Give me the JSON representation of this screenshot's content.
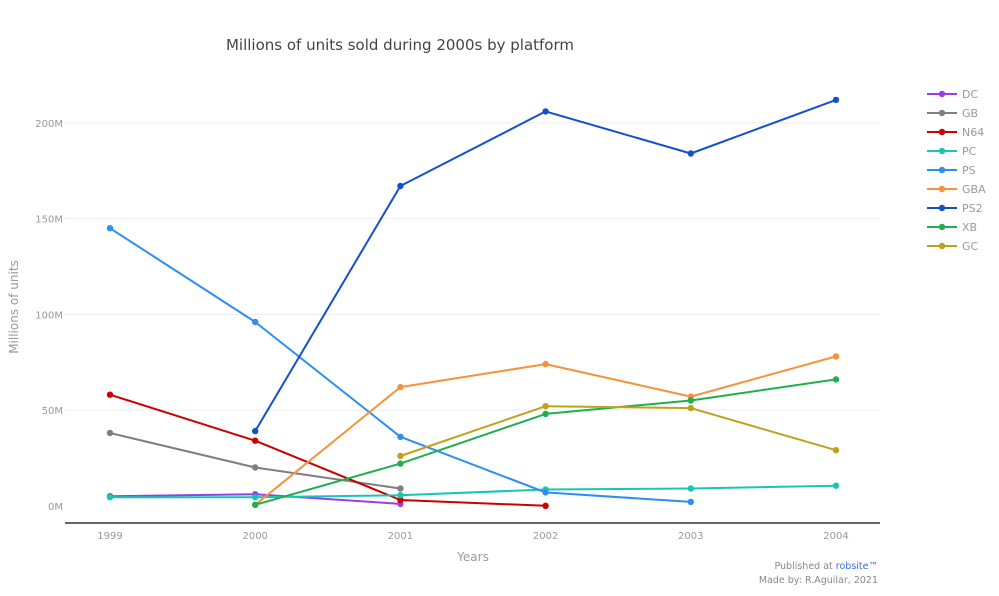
{
  "chart_data": {
    "type": "line",
    "title": "Millions of units sold during 2000s by platform",
    "xlabel": "Years",
    "ylabel": "Millions of units",
    "x": [
      "1999",
      "2000",
      "2001",
      "2002",
      "2003",
      "2004"
    ],
    "ylim": [
      -9,
      225
    ],
    "yticks": [
      0,
      50,
      100,
      150,
      200
    ],
    "ytick_labels": [
      "0M",
      "50M",
      "100M",
      "150M",
      "200M"
    ],
    "grid": true,
    "legend_position": "right",
    "series": [
      {
        "name": "DC",
        "color": "#9b3de6",
        "values": [
          5,
          6,
          1,
          null,
          null,
          null
        ]
      },
      {
        "name": "GB",
        "color": "#7f7f7f",
        "values": [
          38,
          20,
          9,
          null,
          null,
          null
        ]
      },
      {
        "name": "N64",
        "color": "#cc0000",
        "values": [
          58,
          34,
          3,
          0,
          null,
          null
        ]
      },
      {
        "name": "PC",
        "color": "#17c6b3",
        "values": [
          4.5,
          4.5,
          5.5,
          8.5,
          9,
          10.5
        ]
      },
      {
        "name": "PS",
        "color": "#2e8ff0",
        "values": [
          145,
          96,
          36,
          7,
          2,
          null
        ]
      },
      {
        "name": "GBA",
        "color": "#f5923a",
        "values": [
          null,
          0.5,
          62,
          74,
          57,
          78
        ]
      },
      {
        "name": "PS2",
        "color": "#1450c9",
        "values": [
          null,
          39,
          167,
          206,
          184,
          212
        ]
      },
      {
        "name": "XB",
        "color": "#1fb04c",
        "values": [
          null,
          0.5,
          22,
          48,
          55,
          66
        ]
      },
      {
        "name": "GC",
        "color": "#bfa21c",
        "values": [
          null,
          null,
          26,
          52,
          51,
          29
        ]
      }
    ]
  },
  "credits": {
    "published_prefix": "Published at ",
    "published_link": "robsite™",
    "made_by": "Made by: R.Aguilar, 2021",
    "link_color": "#3d6ee0"
  }
}
